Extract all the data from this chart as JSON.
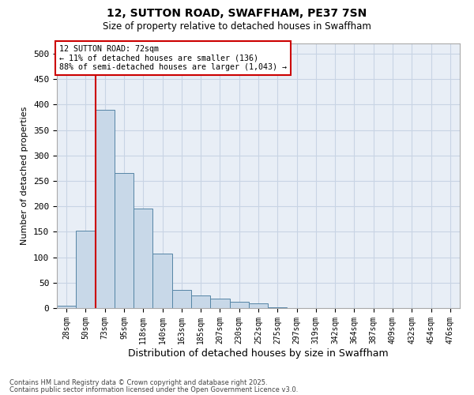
{
  "title": "12, SUTTON ROAD, SWAFFHAM, PE37 7SN",
  "subtitle": "Size of property relative to detached houses in Swaffham",
  "xlabel": "Distribution of detached houses by size in Swaffham",
  "ylabel": "Number of detached properties",
  "footnote1": "Contains HM Land Registry data © Crown copyright and database right 2025.",
  "footnote2": "Contains public sector information licensed under the Open Government Licence v3.0.",
  "categories": [
    "28sqm",
    "50sqm",
    "73sqm",
    "95sqm",
    "118sqm",
    "140sqm",
    "163sqm",
    "185sqm",
    "207sqm",
    "230sqm",
    "252sqm",
    "275sqm",
    "297sqm",
    "319sqm",
    "342sqm",
    "364sqm",
    "387sqm",
    "409sqm",
    "432sqm",
    "454sqm",
    "476sqm"
  ],
  "bar_values": [
    5,
    152,
    390,
    265,
    195,
    107,
    35,
    25,
    18,
    13,
    9,
    1,
    0,
    0,
    0,
    0,
    0,
    0,
    0,
    0,
    0
  ],
  "bar_color": "#c8d8e8",
  "bar_edge_color": "#5585a5",
  "grid_color": "#c8d4e4",
  "background_color": "#e8eef6",
  "annotation_line1": "12 SUTTON ROAD: 72sqm",
  "annotation_line2": "← 11% of detached houses are smaller (136)",
  "annotation_line3": "88% of semi-detached houses are larger (1,043) →",
  "annotation_box_color": "#cc0000",
  "vline_color": "#cc0000",
  "ylim": [
    0,
    520
  ],
  "yticks": [
    0,
    50,
    100,
    150,
    200,
    250,
    300,
    350,
    400,
    450,
    500
  ]
}
